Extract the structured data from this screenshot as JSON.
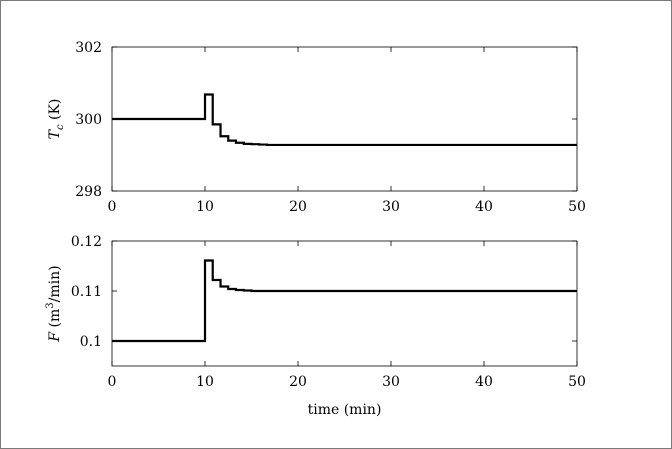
{
  "chart_data": [
    {
      "type": "line",
      "step": true,
      "ylabel": "T_c (K)",
      "ylabel_parts": {
        "symbol": "T",
        "subscript": "c",
        "unit": "(K)"
      },
      "xlabel": "",
      "xlim": [
        0,
        50
      ],
      "ylim": [
        298,
        302
      ],
      "xticks": [
        0,
        10,
        20,
        30,
        40,
        50
      ],
      "xtick_labels": [
        "0",
        "10",
        "20",
        "30",
        "40",
        "50"
      ],
      "yticks": [
        298,
        300,
        302
      ],
      "ytick_labels": [
        "298",
        "300",
        "302"
      ],
      "grid": false,
      "series": [
        {
          "color": "#000000",
          "x": [
            0,
            10,
            10,
            10.83,
            10.83,
            11.67,
            11.67,
            12.5,
            12.5,
            13.33,
            13.33,
            14.17,
            14.17,
            15,
            15,
            15.83,
            15.83,
            16.67,
            16.67,
            17.5,
            17.5,
            50
          ],
          "y": [
            300,
            300,
            300.68,
            300.68,
            299.85,
            299.85,
            299.52,
            299.52,
            299.4,
            299.4,
            299.34,
            299.34,
            299.31,
            299.31,
            299.3,
            299.3,
            299.29,
            299.29,
            299.28,
            299.28,
            299.28,
            299.28
          ]
        }
      ]
    },
    {
      "type": "line",
      "step": true,
      "ylabel": "F (m3/min)",
      "ylabel_parts": {
        "symbol": "F",
        "unit_open": "(m",
        "superscript": "3",
        "unit_close": "/min)"
      },
      "xlabel": "time (min)",
      "xlim": [
        0,
        50
      ],
      "ylim": [
        0.095,
        0.12
      ],
      "xticks": [
        0,
        10,
        20,
        30,
        40,
        50
      ],
      "xtick_labels": [
        "0",
        "10",
        "20",
        "30",
        "40",
        "50"
      ],
      "yticks": [
        0.1,
        0.11,
        0.12
      ],
      "ytick_labels": [
        "0.1",
        "0.11",
        "0.12"
      ],
      "grid": false,
      "series": [
        {
          "color": "#000000",
          "x": [
            0,
            10,
            10,
            10.83,
            10.83,
            11.67,
            11.67,
            12.5,
            12.5,
            13.33,
            13.33,
            14.17,
            14.17,
            15,
            15,
            15.83,
            15.83,
            16.67,
            16.67,
            50
          ],
          "y": [
            0.1,
            0.1,
            0.1161,
            0.1161,
            0.1122,
            0.1122,
            0.1109,
            0.1109,
            0.1104,
            0.1104,
            0.1102,
            0.1102,
            0.1101,
            0.1101,
            0.11,
            0.11,
            0.11,
            0.11,
            0.11,
            0.11
          ]
        }
      ]
    }
  ]
}
